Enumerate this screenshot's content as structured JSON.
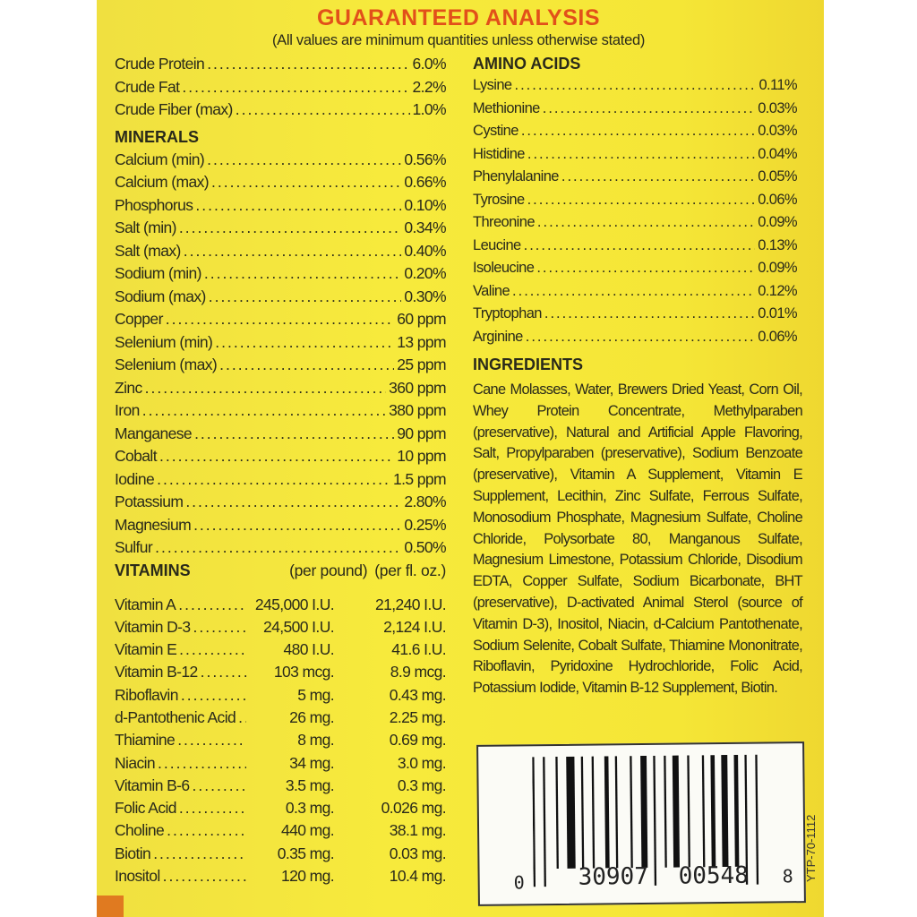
{
  "title": "GUARANTEED ANALYSIS",
  "subtitle": "(All values are minimum quantities unless otherwise stated)",
  "basic": [
    {
      "name": "Crude Protein",
      "value": "6.0%"
    },
    {
      "name": "Crude Fat",
      "value": "2.2%"
    },
    {
      "name": "Crude Fiber (max)",
      "value": "1.0%"
    }
  ],
  "minerals": {
    "heading": "MINERALS",
    "items": [
      {
        "name": "Calcium (min)",
        "value": "0.56%"
      },
      {
        "name": "Calcium (max)",
        "value": "0.66%"
      },
      {
        "name": "Phosphorus",
        "value": "0.10%"
      },
      {
        "name": "Salt (min)",
        "value": "0.34%"
      },
      {
        "name": "Salt (max)",
        "value": "0.40%"
      },
      {
        "name": "Sodium (min)",
        "value": "0.20%"
      },
      {
        "name": "Sodium (max)",
        "value": "0.30%"
      },
      {
        "name": "Copper",
        "value": "60 ppm"
      },
      {
        "name": "Selenium (min)",
        "value": "13 ppm"
      },
      {
        "name": "Selenium (max)",
        "value": "25 ppm"
      },
      {
        "name": "Zinc",
        "value": "360 ppm"
      },
      {
        "name": "Iron",
        "value": "380 ppm"
      },
      {
        "name": "Manganese",
        "value": "90 ppm"
      },
      {
        "name": "Cobalt",
        "value": "10 ppm"
      },
      {
        "name": "Iodine",
        "value": "1.5 ppm"
      },
      {
        "name": "Potassium",
        "value": "2.80%"
      },
      {
        "name": "Magnesium",
        "value": "0.25%"
      },
      {
        "name": "Sulfur",
        "value": "0.50%"
      }
    ]
  },
  "vitamins": {
    "heading": "VITAMINS",
    "col1": "(per pound)",
    "col2": "(per fl. oz.)",
    "items": [
      {
        "name": "Vitamin A",
        "per_pound": "245,000 I.U.",
        "per_floz": "21,240 I.U."
      },
      {
        "name": "Vitamin D-3",
        "per_pound": "24,500 I.U.",
        "per_floz": "2,124 I.U."
      },
      {
        "name": "Vitamin E",
        "per_pound": "480 I.U.",
        "per_floz": "41.6 I.U."
      },
      {
        "name": "Vitamin B-12",
        "per_pound": "103 mcg.",
        "per_floz": "8.9 mcg."
      },
      {
        "name": "Riboflavin",
        "per_pound": "5 mg.",
        "per_floz": "0.43 mg."
      },
      {
        "name": "d-Pantothenic Acid",
        "per_pound": "26 mg.",
        "per_floz": "2.25 mg."
      },
      {
        "name": "Thiamine",
        "per_pound": "8 mg.",
        "per_floz": "0.69 mg."
      },
      {
        "name": "Niacin",
        "per_pound": "34 mg.",
        "per_floz": "3.0 mg."
      },
      {
        "name": "Vitamin B-6",
        "per_pound": "3.5 mg.",
        "per_floz": "0.3 mg."
      },
      {
        "name": "Folic Acid",
        "per_pound": "0.3 mg.",
        "per_floz": "0.026 mg."
      },
      {
        "name": "Choline",
        "per_pound": "440 mg.",
        "per_floz": "38.1 mg."
      },
      {
        "name": "Biotin",
        "per_pound": "0.35 mg.",
        "per_floz": "0.03 mg."
      },
      {
        "name": "Inositol",
        "per_pound": "120 mg.",
        "per_floz": "10.4 mg."
      }
    ]
  },
  "amino_acids": {
    "heading": "AMINO ACIDS",
    "items": [
      {
        "name": "Lysine",
        "value": "0.11%"
      },
      {
        "name": "Methionine",
        "value": "0.03%"
      },
      {
        "name": "Cystine",
        "value": "0.03%"
      },
      {
        "name": "Histidine",
        "value": "0.04%"
      },
      {
        "name": "Phenylalanine",
        "value": "0.05%"
      },
      {
        "name": "Tyrosine",
        "value": "0.06%"
      },
      {
        "name": "Threonine",
        "value": "0.09%"
      },
      {
        "name": "Leucine",
        "value": "0.13%"
      },
      {
        "name": "Isoleucine",
        "value": "0.09%"
      },
      {
        "name": "Valine",
        "value": "0.12%"
      },
      {
        "name": "Tryptophan",
        "value": "0.01%"
      },
      {
        "name": "Arginine",
        "value": "0.06%"
      }
    ]
  },
  "ingredients": {
    "heading": "INGREDIENTS",
    "text": "Cane Molasses, Water, Brewers Dried Yeast, Corn Oil, Whey Protein Concentrate, Methylparaben (preservative), Natural and Artificial Apple Flavoring, Salt, Propylparaben (preservative), Sodium Benzoate (preservative), Vitamin A Supplement, Vitamin E Supplement, Lecithin, Zinc Sulfate, Ferrous Sulfate, Monosodium Phosphate, Magnesium Sulfate, Choline Chloride, Polysorbate 80, Manganous Sulfate, Magnesium Limestone, Potassium Chloride, Disodium EDTA, Copper Sulfate, Sodium Bicarbonate, BHT (preservative), D-activated Animal Sterol (source of Vitamin D-3), Inositol, Niacin, d-Calcium Pantothenate, Sodium Selenite, Cobalt Sulfate, Thiamine Mononitrate, Riboflavin, Pyridoxine Hydrochloride, Folic Acid, Potassium Iodide, Vitamin B-12 Supplement, Biotin."
  },
  "barcode": {
    "lead": "0",
    "left": "30907",
    "right": "00548",
    "check": "8"
  },
  "code": "YTP-70-1112",
  "colors": {
    "label": "#f5e636",
    "title": "#e2501a"
  }
}
